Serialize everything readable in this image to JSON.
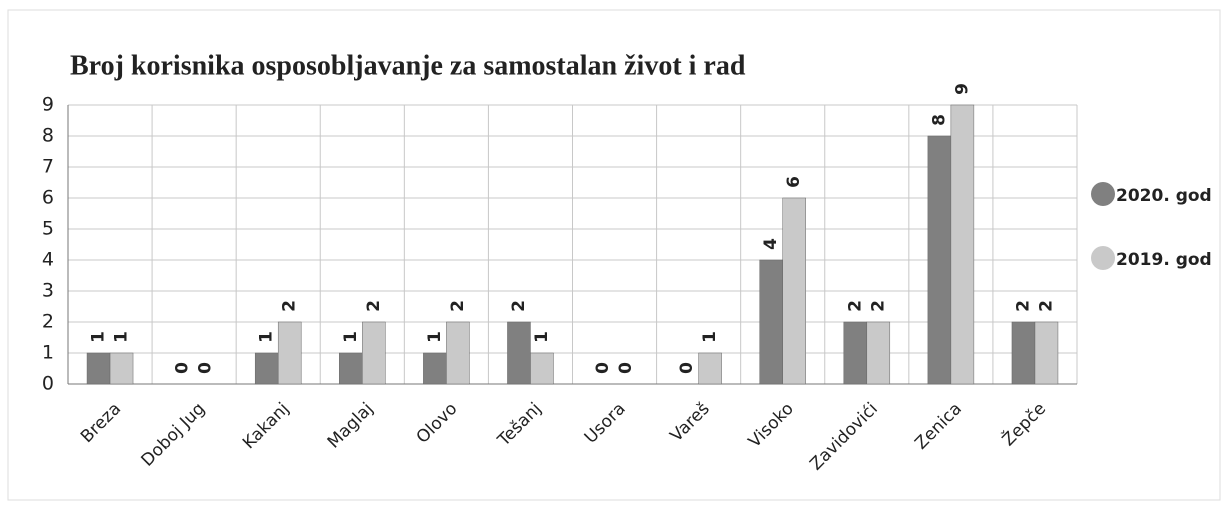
{
  "chart_data": {
    "type": "bar",
    "title": "Broj korisnika osposobljavanje za samostalan život i rad",
    "categories": [
      "Breza",
      "Doboj Jug",
      "Kakanj",
      "Maglaj",
      "Olovo",
      "Tešanj",
      "Usora",
      "Vareš",
      "Visoko",
      "Zavidovići",
      "Zenica",
      "Žepče"
    ],
    "series": [
      {
        "name": "2020. god",
        "color": "#808080",
        "values": [
          1,
          0,
          1,
          1,
          1,
          2,
          0,
          0,
          4,
          2,
          8,
          2
        ]
      },
      {
        "name": "2019. god",
        "color": "#c9c9c9",
        "values": [
          1,
          0,
          2,
          2,
          2,
          1,
          0,
          1,
          6,
          2,
          9,
          2
        ]
      }
    ],
    "ylim": [
      0,
      9
    ],
    "yticks": [
      0,
      1,
      2,
      3,
      4,
      5,
      6,
      7,
      8,
      9
    ],
    "grid": true,
    "legend": "right"
  }
}
